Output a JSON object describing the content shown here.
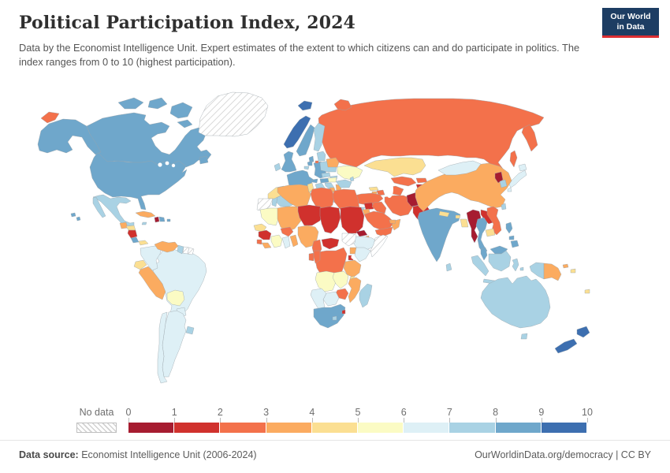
{
  "header": {
    "title": "Political Participation Index, 2024",
    "subtitle": "Data by the Economist Intelligence Unit. Expert estimates of the extent to which citizens can and do participate in politics. The index ranges from 0 to 10 (highest participation).",
    "logo_line1": "Our World",
    "logo_line2": "in Data",
    "logo_bg": "#1d3d63",
    "logo_accent": "#dc2e32"
  },
  "legend": {
    "no_data_label": "No data",
    "ticks": [
      "0",
      "1",
      "2",
      "3",
      "4",
      "5",
      "6",
      "7",
      "8",
      "9",
      "10"
    ],
    "colors": [
      "#a61c30",
      "#d0312d",
      "#f3714b",
      "#fbab60",
      "#fbdf92",
      "#fbfbc4",
      "#def0f6",
      "#a9d2e4",
      "#6fa7cb",
      "#3d6fb0"
    ]
  },
  "footer": {
    "source_label": "Data source:",
    "source_text": " Economist Intelligence Unit (2006-2024)",
    "right_text": "OurWorldinData.org/democracy | CC BY"
  },
  "chart_data": {
    "type": "choropleth",
    "title": "Political Participation Index, 2024",
    "unit": "index 0-10 (bin = lower bound of color band)",
    "scale_min": 0,
    "scale_max": 10,
    "no_data": "hatched",
    "countries": {
      "russia": {
        "label": "Russia",
        "bin": 2
      },
      "canada": {
        "label": "Canada",
        "bin": 8
      },
      "usa": {
        "label": "United States",
        "bin": 8
      },
      "greenland": {
        "label": "Greenland",
        "bin": null
      },
      "iceland": {
        "label": "Iceland",
        "bin": 9
      },
      "mexico": {
        "label": "Mexico",
        "bin": 7
      },
      "guatemala": {
        "label": "Guatemala",
        "bin": 3
      },
      "honduras": {
        "label": "Honduras",
        "bin": 4
      },
      "nicaragua": {
        "label": "Nicaragua",
        "bin": 1
      },
      "costa-rica": {
        "label": "Costa Rica",
        "bin": 8
      },
      "panama": {
        "label": "Panama",
        "bin": 4
      },
      "cuba": {
        "label": "Cuba",
        "bin": 3
      },
      "jamaica": {
        "label": "Jamaica",
        "bin": 7
      },
      "haiti": {
        "label": "Haiti",
        "bin": 0
      },
      "dominican-republic": {
        "label": "Dominican Republic",
        "bin": 8
      },
      "puerto-rico": {
        "label": "Puerto Rico",
        "bin": 8
      },
      "colombia": {
        "label": "Colombia",
        "bin": 6
      },
      "venezuela": {
        "label": "Venezuela",
        "bin": 3
      },
      "guyana": {
        "label": "Guyana",
        "bin": 7
      },
      "suriname": {
        "label": "Suriname",
        "bin": null
      },
      "french-guiana": {
        "label": "French Guiana",
        "bin": null
      },
      "ecuador": {
        "label": "Ecuador",
        "bin": 4
      },
      "peru": {
        "label": "Peru",
        "bin": 3
      },
      "brazil": {
        "label": "Brazil",
        "bin": 6
      },
      "bolivia": {
        "label": "Bolivia",
        "bin": 5
      },
      "paraguay": {
        "label": "Paraguay",
        "bin": 6
      },
      "uruguay": {
        "label": "Uruguay",
        "bin": 7
      },
      "argentina": {
        "label": "Argentina",
        "bin": 6
      },
      "chile": {
        "label": "Chile",
        "bin": 6
      },
      "norway": {
        "label": "Norway",
        "bin": 9
      },
      "sweden": {
        "label": "Sweden",
        "bin": 8
      },
      "finland": {
        "label": "Finland",
        "bin": 7
      },
      "denmark": {
        "label": "Denmark",
        "bin": 8
      },
      "uk": {
        "label": "United Kingdom",
        "bin": 8
      },
      "ireland": {
        "label": "Ireland",
        "bin": 7
      },
      "netherlands": {
        "label": "Netherlands",
        "bin": 8
      },
      "belgium": {
        "label": "Belgium",
        "bin": 7
      },
      "germany": {
        "label": "Germany",
        "bin": 8
      },
      "france": {
        "label": "France",
        "bin": 8
      },
      "switzerland": {
        "label": "Switzerland",
        "bin": 8
      },
      "austria": {
        "label": "Austria",
        "bin": 8
      },
      "czechia": {
        "label": "Czechia",
        "bin": 7
      },
      "slovakia": {
        "label": "Slovakia",
        "bin": 7
      },
      "poland": {
        "label": "Poland",
        "bin": 7
      },
      "spain": {
        "label": "Spain",
        "bin": 7
      },
      "portugal": {
        "label": "Portugal",
        "bin": 7
      },
      "italy": {
        "label": "Italy",
        "bin": 7
      },
      "croatia": {
        "label": "Croatia",
        "bin": 7
      },
      "bosnia": {
        "label": "Bosnia and Herzegovina",
        "bin": 3
      },
      "serbia": {
        "label": "Serbia",
        "bin": 3
      },
      "albania": {
        "label": "Albania",
        "bin": 4
      },
      "greece": {
        "label": "Greece",
        "bin": 7
      },
      "bulgaria": {
        "label": "Bulgaria",
        "bin": 7
      },
      "romania": {
        "label": "Romania",
        "bin": 7
      },
      "hungary": {
        "label": "Hungary",
        "bin": 5
      },
      "baltics": {
        "label": "Baltic states",
        "bin": 7
      },
      "belarus": {
        "label": "Belarus",
        "bin": 3
      },
      "ukraine": {
        "label": "Ukraine",
        "bin": 5
      },
      "moldova": {
        "label": "Moldova",
        "bin": 7
      },
      "turkey": {
        "label": "Turkey",
        "bin": 2
      },
      "cyprus": {
        "label": "Cyprus",
        "bin": 7
      },
      "syria": {
        "label": "Syria",
        "bin": 1
      },
      "israel": {
        "label": "Israel",
        "bin": 7
      },
      "jordan": {
        "label": "Jordan",
        "bin": 3
      },
      "iraq": {
        "label": "Iraq",
        "bin": 2
      },
      "saudi-arabia": {
        "label": "Saudi Arabia",
        "bin": 2
      },
      "yemen": {
        "label": "Yemen",
        "bin": 2
      },
      "oman": {
        "label": "Oman",
        "bin": 3
      },
      "uae": {
        "label": "United Arab Emirates",
        "bin": 3
      },
      "iran": {
        "label": "Iran",
        "bin": 2
      },
      "afghanistan": {
        "label": "Afghanistan",
        "bin": 0
      },
      "pakistan": {
        "label": "Pakistan",
        "bin": 1
      },
      "india": {
        "label": "India",
        "bin": 8
      },
      "nepal": {
        "label": "Nepal",
        "bin": 4
      },
      "bhutan": {
        "label": "Bhutan",
        "bin": 4
      },
      "bangladesh": {
        "label": "Bangladesh",
        "bin": 4
      },
      "sri-lanka": {
        "label": "Sri Lanka",
        "bin": 7
      },
      "china": {
        "label": "China",
        "bin": 3
      },
      "mongolia": {
        "label": "Mongolia",
        "bin": 6
      },
      "north-korea": {
        "label": "North Korea",
        "bin": 0
      },
      "south-korea": {
        "label": "South Korea",
        "bin": 7
      },
      "japan": {
        "label": "Japan",
        "bin": 6
      },
      "taiwan": {
        "label": "Taiwan",
        "bin": 7
      },
      "myanmar": {
        "label": "Myanmar",
        "bin": 0
      },
      "thailand": {
        "label": "Thailand",
        "bin": 8
      },
      "laos": {
        "label": "Laos",
        "bin": 1
      },
      "vietnam": {
        "label": "Vietnam",
        "bin": 2
      },
      "cambodia": {
        "label": "Cambodia",
        "bin": 4
      },
      "malaysia": {
        "label": "Malaysia",
        "bin": 8
      },
      "indonesia": {
        "label": "Indonesia",
        "bin": 7
      },
      "philippines": {
        "label": "Philippines",
        "bin": 8
      },
      "papua-new-guinea": {
        "label": "Papua New Guinea",
        "bin": 3
      },
      "timor": {
        "label": "East Timor",
        "bin": 4
      },
      "solomon-islands": {
        "label": "Solomon Islands",
        "bin": 4
      },
      "fiji": {
        "label": "Fiji",
        "bin": 4
      },
      "australia": {
        "label": "Australia",
        "bin": 7
      },
      "new-zealand": {
        "label": "New Zealand",
        "bin": 9
      },
      "morocco": {
        "label": "Morocco",
        "bin": 4
      },
      "western-sahara": {
        "label": "Western Sahara",
        "bin": null
      },
      "algeria": {
        "label": "Algeria",
        "bin": 3
      },
      "tunisia": {
        "label": "Tunisia",
        "bin": 4
      },
      "libya": {
        "label": "Libya",
        "bin": 2
      },
      "egypt": {
        "label": "Egypt",
        "bin": 2
      },
      "mauritania": {
        "label": "Mauritania",
        "bin": 5
      },
      "mali": {
        "label": "Mali",
        "bin": 3
      },
      "senegal": {
        "label": "Senegal",
        "bin": 4
      },
      "guinea": {
        "label": "Guinea",
        "bin": 1
      },
      "sierra-leone": {
        "label": "Sierra Leone",
        "bin": 2
      },
      "liberia": {
        "label": "Liberia",
        "bin": 3
      },
      "ivory-coast": {
        "label": "Cote d'Ivoire",
        "bin": 5
      },
      "burkina-faso": {
        "label": "Burkina Faso",
        "bin": 2
      },
      "ghana": {
        "label": "Ghana",
        "bin": 6
      },
      "benin": {
        "label": "Benin",
        "bin": 3
      },
      "niger": {
        "label": "Niger",
        "bin": 1
      },
      "nigeria": {
        "label": "Nigeria",
        "bin": 3
      },
      "chad": {
        "label": "Chad",
        "bin": 1
      },
      "sudan": {
        "label": "Sudan",
        "bin": 1
      },
      "eritrea": {
        "label": "Eritrea",
        "bin": 0
      },
      "djibouti": {
        "label": "Djibouti",
        "bin": 3
      },
      "ethiopia": {
        "label": "Ethiopia",
        "bin": 6
      },
      "somalia": {
        "label": "Somalia",
        "bin": null
      },
      "south-sudan": {
        "label": "South Sudan",
        "bin": null
      },
      "cameroon": {
        "label": "Cameroon",
        "bin": 2
      },
      "central-african-republic": {
        "label": "Central African Republic",
        "bin": 1
      },
      "uganda": {
        "label": "Uganda",
        "bin": 3
      },
      "kenya": {
        "label": "Kenya",
        "bin": 6
      },
      "rwanda-burundi": {
        "label": "Rwanda / Burundi",
        "bin": 1
      },
      "drc": {
        "label": "Democratic Republic of Congo",
        "bin": 2
      },
      "gabon": {
        "label": "Gabon",
        "bin": 2
      },
      "congo": {
        "label": "Congo",
        "bin": 2
      },
      "tanzania": {
        "label": "Tanzania",
        "bin": 3
      },
      "angola": {
        "label": "Angola",
        "bin": 5
      },
      "zambia": {
        "label": "Zambia",
        "bin": 5
      },
      "malawi": {
        "label": "Malawi",
        "bin": 4
      },
      "mozambique": {
        "label": "Mozambique",
        "bin": 3
      },
      "zimbabwe": {
        "label": "Zimbabwe",
        "bin": 2
      },
      "botswana": {
        "label": "Botswana",
        "bin": 6
      },
      "namibia": {
        "label": "Namibia",
        "bin": 6
      },
      "south-africa": {
        "label": "South Africa",
        "bin": 8
      },
      "lesotho": {
        "label": "Lesotho",
        "bin": 7
      },
      "eswatini": {
        "label": "Eswatini",
        "bin": 1
      },
      "madagascar": {
        "label": "Madagascar",
        "bin": 7
      },
      "kazakhstan": {
        "label": "Kazakhstan",
        "bin": 4
      },
      "uzbekistan": {
        "label": "Uzbekistan",
        "bin": 2
      },
      "turkmenistan": {
        "label": "Turkmenistan",
        "bin": 2
      },
      "kyrgyzstan": {
        "label": "Kyrgyzstan",
        "bin": 2
      },
      "tajikistan": {
        "label": "Tajikistan",
        "bin": 1
      },
      "georgia": {
        "label": "Georgia",
        "bin": 4
      },
      "armenia": {
        "label": "Armenia",
        "bin": 3
      },
      "azerbaijan": {
        "label": "Azerbaijan",
        "bin": 2
      }
    }
  }
}
